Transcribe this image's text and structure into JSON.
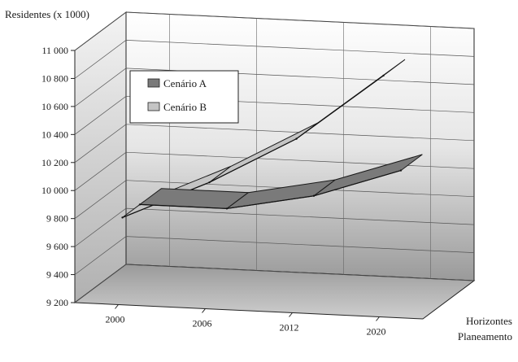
{
  "chart_data": {
    "type": "line",
    "title": "",
    "ylabel": "Residentes (x 1000)",
    "xlabel": "Horizontes Planeamento",
    "xlabel_lines": [
      "Horizontes",
      "Planeamento"
    ],
    "categories": [
      "2000",
      "2006",
      "2012",
      "2020"
    ],
    "ylim": [
      9200,
      11000
    ],
    "ytick_values": [
      9200,
      9400,
      9600,
      9800,
      10000,
      10200,
      10400,
      10600,
      10800,
      11000
    ],
    "ytick_labels": [
      "9 200",
      "9 400",
      "9 600",
      "9 800",
      "10 000",
      "10 200",
      "10 400",
      "10 600",
      "10 800",
      "11 000"
    ],
    "grid": true,
    "legend_position": "top-left",
    "series": [
      {
        "name": "Cenário A",
        "values": [
          9800,
          9800,
          9920,
          10130
        ],
        "color": "#7a7a7a"
      },
      {
        "name": "Cenário B",
        "values": [
          9800,
          10080,
          10420,
          10900
        ],
        "color": "#c4c4c4"
      }
    ]
  }
}
